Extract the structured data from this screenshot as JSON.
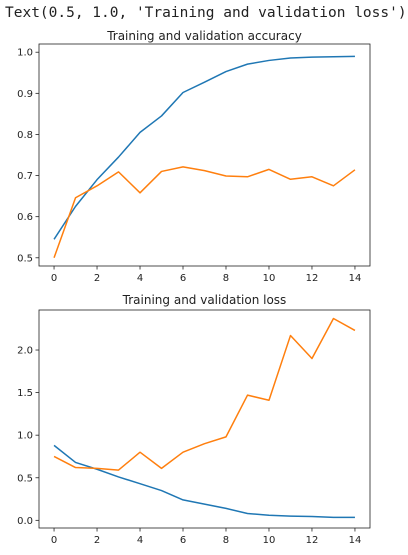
{
  "output_text": "Text(0.5, 1.0, 'Training and validation loss')",
  "chart_data": [
    {
      "type": "line",
      "title": "Training and validation accuracy",
      "xlabel": "",
      "ylabel": "",
      "x": [
        0,
        1,
        2,
        3,
        4,
        5,
        6,
        7,
        8,
        9,
        10,
        11,
        12,
        13,
        14
      ],
      "xlim": [
        -0.7,
        14.7
      ],
      "ylim": [
        0.48,
        1.02
      ],
      "xticks": [
        0,
        2,
        4,
        6,
        8,
        10,
        12,
        14
      ],
      "yticks": [
        0.5,
        0.6,
        0.7,
        0.8,
        0.9,
        1.0
      ],
      "ytick_labels": [
        "0.5",
        "0.6",
        "0.7",
        "0.8",
        "0.9",
        "1.0"
      ],
      "grid": false,
      "series": [
        {
          "color": "#1f77b4",
          "values": [
            0.545,
            0.625,
            0.69,
            0.745,
            0.805,
            0.845,
            0.902,
            0.927,
            0.953,
            0.971,
            0.98,
            0.986,
            0.988,
            0.989,
            0.99
          ]
        },
        {
          "color": "#ff7f0e",
          "values": [
            0.5,
            0.646,
            0.675,
            0.709,
            0.658,
            0.71,
            0.721,
            0.712,
            0.699,
            0.697,
            0.715,
            0.691,
            0.697,
            0.675,
            0.714
          ]
        }
      ]
    },
    {
      "type": "line",
      "title": "Training and validation loss",
      "xlabel": "",
      "ylabel": "",
      "x": [
        0,
        1,
        2,
        3,
        4,
        5,
        6,
        7,
        8,
        9,
        10,
        11,
        12,
        13,
        14
      ],
      "xlim": [
        -0.7,
        14.7
      ],
      "ylim": [
        -0.09,
        2.47
      ],
      "xticks": [
        0,
        2,
        4,
        6,
        8,
        10,
        12,
        14
      ],
      "yticks": [
        0.0,
        0.5,
        1.0,
        1.5,
        2.0
      ],
      "ytick_labels": [
        "0.0",
        "0.5",
        "1.0",
        "1.5",
        "2.0"
      ],
      "grid": false,
      "series": [
        {
          "color": "#1f77b4",
          "values": [
            0.88,
            0.68,
            0.6,
            0.51,
            0.43,
            0.35,
            0.24,
            0.19,
            0.14,
            0.08,
            0.06,
            0.05,
            0.045,
            0.035,
            0.035
          ]
        },
        {
          "color": "#ff7f0e",
          "values": [
            0.75,
            0.62,
            0.61,
            0.59,
            0.8,
            0.61,
            0.8,
            0.9,
            0.98,
            1.47,
            1.41,
            2.17,
            1.9,
            2.37,
            2.23
          ]
        }
      ]
    }
  ]
}
